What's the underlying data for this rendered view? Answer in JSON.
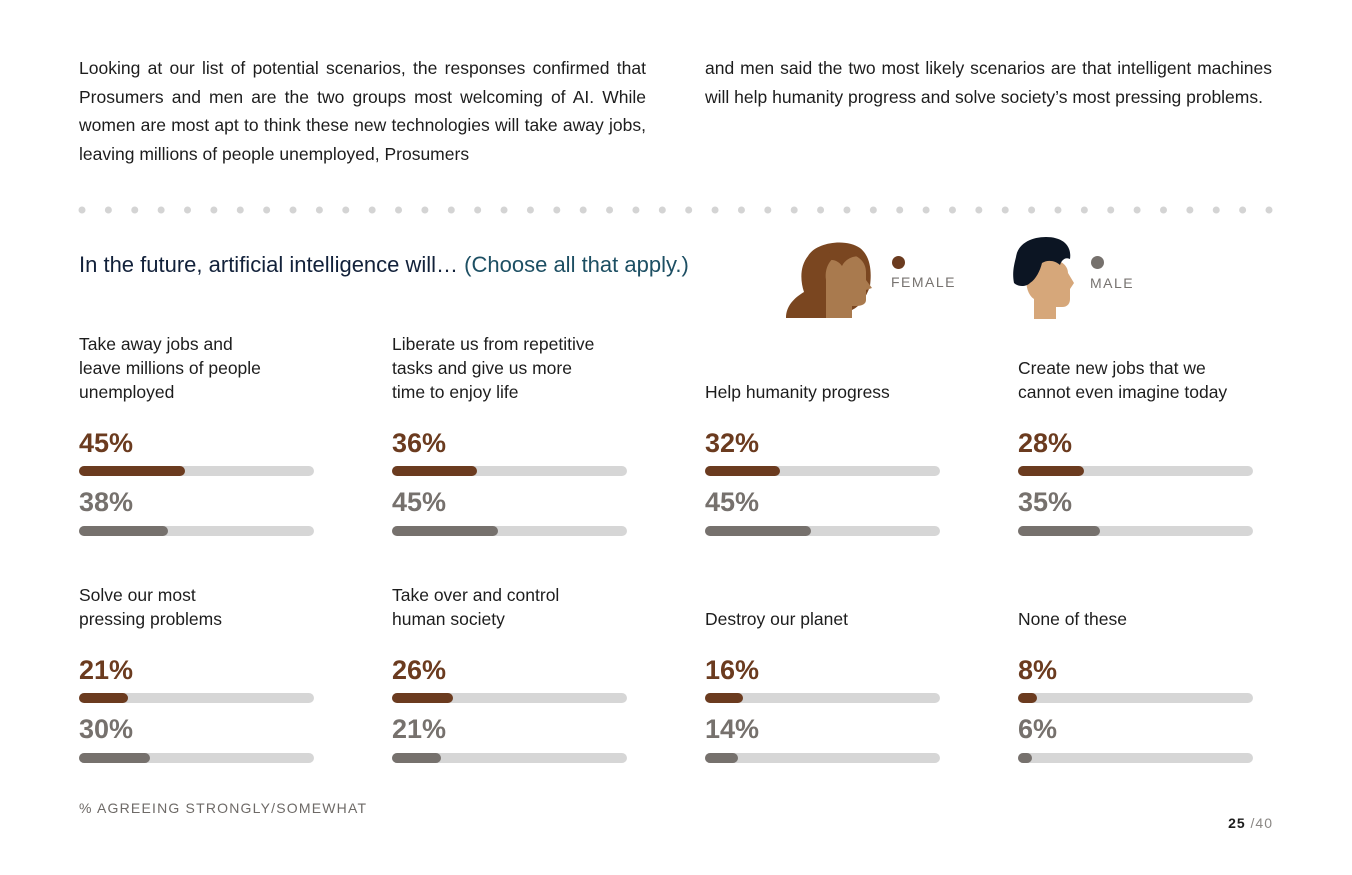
{
  "intro": {
    "left": "Looking at our list of potential scenarios, the responses confirmed that Prosumers and men are the two groups most welcoming of AI. While women are most apt to think these new technologies will take away jobs, leaving millions of people unemployed, Prosumers",
    "right": "and men said the two most likely scenarios are that intelligent machines will help humanity progress and solve society’s most pressing problems."
  },
  "heading": {
    "main": "In the future, artificial intelligence will…",
    "paren": " (Choose all that apply.)"
  },
  "legend": {
    "female": {
      "label": "FEMALE",
      "color": "#6b3b1f",
      "icon": "female-avatar-icon"
    },
    "male": {
      "label": "MALE",
      "color": "#76716d",
      "icon": "male-avatar-icon"
    }
  },
  "colors": {
    "female": "#6b3b1f",
    "male": "#76716d",
    "track": "#d6d6d6"
  },
  "chart_data": {
    "type": "bar",
    "title": "In the future, artificial intelligence will… (Choose all that apply.)",
    "unit": "%",
    "ylim": [
      0,
      100
    ],
    "series_names": [
      "Female",
      "Male"
    ],
    "items": [
      {
        "label": "Take away jobs and\nleave millions of people\nunemployed",
        "female": 45,
        "male": 38
      },
      {
        "label": "Liberate us from repetitive\ntasks and give us more\ntime to enjoy life",
        "female": 36,
        "male": 45
      },
      {
        "label": "Help humanity progress",
        "female": 32,
        "male": 45
      },
      {
        "label": "Create new jobs that we\ncannot even imagine today",
        "female": 28,
        "male": 35
      },
      {
        "label": "Solve our most\npressing problems",
        "female": 21,
        "male": 30
      },
      {
        "label": "Take over and control\nhuman society",
        "female": 26,
        "male": 21
      },
      {
        "label": "Destroy our planet",
        "female": 16,
        "male": 14
      },
      {
        "label": "None of these",
        "female": 8,
        "male": 6
      }
    ]
  },
  "footnote": "% AGREEING STRONGLY/SOMEWHAT",
  "page": {
    "current": "25",
    "total": " /40"
  }
}
